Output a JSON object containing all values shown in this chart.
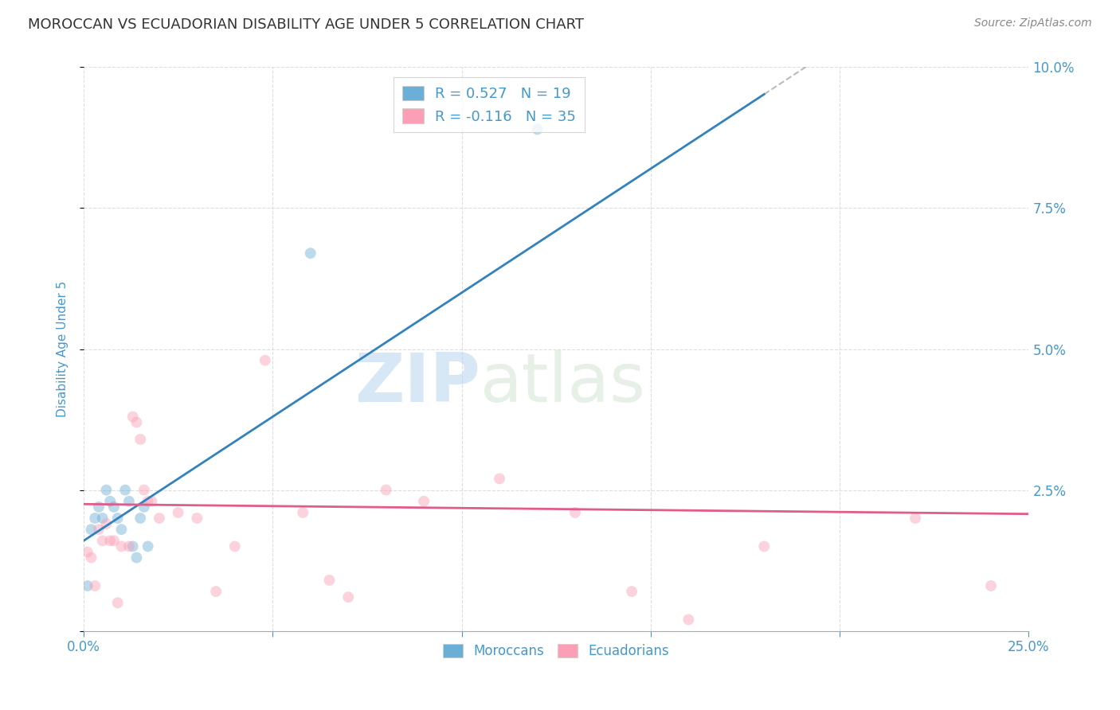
{
  "title": "MOROCCAN VS ECUADORIAN DISABILITY AGE UNDER 5 CORRELATION CHART",
  "source": "Source: ZipAtlas.com",
  "ylabel": "Disability Age Under 5",
  "xlim": [
    0.0,
    0.25
  ],
  "ylim": [
    0.0,
    0.1
  ],
  "moroccan_color": "#6baed6",
  "ecuadorian_color": "#fa9fb5",
  "moroccan_line_color": "#3182bd",
  "ecuadorian_line_color": "#e05c8a",
  "moroccan_R": 0.527,
  "moroccan_N": 19,
  "ecuadorian_R": -0.116,
  "ecuadorian_N": 35,
  "moroccan_x": [
    0.001,
    0.002,
    0.003,
    0.004,
    0.005,
    0.006,
    0.007,
    0.008,
    0.009,
    0.01,
    0.011,
    0.012,
    0.013,
    0.014,
    0.015,
    0.016,
    0.017,
    0.06,
    0.12
  ],
  "moroccan_y": [
    0.008,
    0.018,
    0.02,
    0.022,
    0.02,
    0.025,
    0.023,
    0.022,
    0.02,
    0.018,
    0.025,
    0.023,
    0.015,
    0.013,
    0.02,
    0.022,
    0.015,
    0.067,
    0.089
  ],
  "ecuadorian_x": [
    0.001,
    0.002,
    0.003,
    0.004,
    0.005,
    0.006,
    0.007,
    0.008,
    0.009,
    0.01,
    0.012,
    0.013,
    0.014,
    0.015,
    0.016,
    0.017,
    0.018,
    0.02,
    0.025,
    0.03,
    0.035,
    0.04,
    0.048,
    0.058,
    0.065,
    0.07,
    0.08,
    0.09,
    0.11,
    0.13,
    0.145,
    0.16,
    0.18,
    0.22,
    0.24
  ],
  "ecuadorian_y": [
    0.014,
    0.013,
    0.008,
    0.018,
    0.016,
    0.019,
    0.016,
    0.016,
    0.005,
    0.015,
    0.015,
    0.038,
    0.037,
    0.034,
    0.025,
    0.023,
    0.023,
    0.02,
    0.021,
    0.02,
    0.007,
    0.015,
    0.048,
    0.021,
    0.009,
    0.006,
    0.025,
    0.023,
    0.027,
    0.021,
    0.007,
    0.002,
    0.015,
    0.02,
    0.008
  ],
  "watermark_zip": "ZIP",
  "watermark_atlas": "atlas",
  "background_color": "#ffffff",
  "grid_color": "#dddddd",
  "title_color": "#333333",
  "axis_label_color": "#4499cc",
  "tick_color": "#4499cc",
  "marker_size": 100,
  "marker_alpha": 0.45,
  "legend_fontsize": 13,
  "title_fontsize": 13,
  "ylabel_fontsize": 11,
  "mor_line_intercept": 0.016,
  "mor_line_slope": 0.44,
  "ecu_line_intercept": 0.0225,
  "ecu_line_slope": -0.007
}
